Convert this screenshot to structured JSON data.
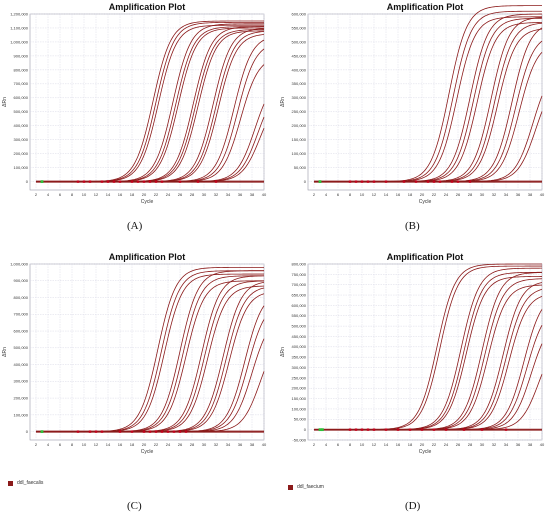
{
  "chart_data": [
    {
      "id": "A",
      "type": "line",
      "title": "Amplification Plot",
      "xlabel": "Cycle",
      "ylabel": "ΔRn",
      "xlim": [
        1,
        40
      ],
      "ylim": [
        -60000,
        1200000
      ],
      "x_ticks": [
        2,
        4,
        6,
        8,
        10,
        12,
        14,
        16,
        18,
        20,
        22,
        24,
        26,
        28,
        30,
        32,
        34,
        36,
        38,
        40
      ],
      "y_ticks": [
        0,
        100000,
        200000,
        300000,
        400000,
        500000,
        600000,
        700000,
        800000,
        900000,
        1000000,
        1100000,
        1200000
      ],
      "y_tick_labels": [
        "0",
        "100,000",
        "200,000",
        "300,000",
        "400,000",
        "500,000",
        "600,000",
        "700,000",
        "800,000",
        "900,000",
        "1,000,000",
        "1,100,000",
        "1,200,000"
      ],
      "curves": [
        {
          "ct": 21.5,
          "max": 1150000
        },
        {
          "ct": 22.0,
          "max": 1140000
        },
        {
          "ct": 22.4,
          "max": 1120000
        },
        {
          "ct": 24.8,
          "max": 1130000
        },
        {
          "ct": 25.3,
          "max": 1110000
        },
        {
          "ct": 25.7,
          "max": 1100000
        },
        {
          "ct": 28.2,
          "max": 1110000
        },
        {
          "ct": 28.6,
          "max": 1090000
        },
        {
          "ct": 29.0,
          "max": 1080000
        },
        {
          "ct": 31.5,
          "max": 1100000
        },
        {
          "ct": 32.0,
          "max": 1080000
        },
        {
          "ct": 32.4,
          "max": 1060000
        },
        {
          "ct": 35.0,
          "max": 1050000
        },
        {
          "ct": 35.6,
          "max": 1000000
        },
        {
          "ct": 36.1,
          "max": 900000
        },
        {
          "ct": 38.5,
          "max": 760000
        },
        {
          "ct": 39.0,
          "max": 700000
        },
        {
          "ct": 39.4,
          "max": 640000
        }
      ],
      "ct_markers": [
        9,
        10,
        11,
        13,
        14,
        15,
        16,
        18,
        19,
        20,
        21,
        22,
        23,
        26,
        29,
        32
      ],
      "ntc_markers": [
        3
      ]
    },
    {
      "id": "B",
      "type": "line",
      "title": "Amplification Plot",
      "xlabel": "Cycle",
      "ylabel": "ΔRn",
      "xlim": [
        1,
        40
      ],
      "ylim": [
        -30000,
        600000
      ],
      "x_ticks": [
        2,
        4,
        6,
        8,
        10,
        12,
        14,
        16,
        18,
        20,
        22,
        24,
        26,
        28,
        30,
        32,
        34,
        36,
        38,
        40
      ],
      "y_ticks": [
        0,
        50000,
        100000,
        150000,
        200000,
        250000,
        300000,
        350000,
        400000,
        450000,
        500000,
        550000,
        600000
      ],
      "y_tick_labels": [
        "0",
        "50,000",
        "100,000",
        "150,000",
        "200,000",
        "250,000",
        "300,000",
        "350,000",
        "400,000",
        "450,000",
        "500,000",
        "550,000",
        "600,000"
      ],
      "curves": [
        {
          "ct": 24.5,
          "max": 630000
        },
        {
          "ct": 25.2,
          "max": 610000
        },
        {
          "ct": 25.8,
          "max": 590000
        },
        {
          "ct": 28.0,
          "max": 600000
        },
        {
          "ct": 28.6,
          "max": 585000
        },
        {
          "ct": 29.2,
          "max": 570000
        },
        {
          "ct": 31.5,
          "max": 590000
        },
        {
          "ct": 32.1,
          "max": 570000
        },
        {
          "ct": 32.6,
          "max": 550000
        },
        {
          "ct": 35.0,
          "max": 570000
        },
        {
          "ct": 35.6,
          "max": 530000
        },
        {
          "ct": 36.2,
          "max": 500000
        },
        {
          "ct": 38.5,
          "max": 420000
        },
        {
          "ct": 39.0,
          "max": 380000
        }
      ],
      "ct_markers": [
        8,
        9,
        10,
        11,
        12,
        14,
        17,
        19,
        21,
        22,
        23,
        25,
        26,
        28
      ],
      "ntc_markers": [
        3
      ]
    },
    {
      "id": "C",
      "type": "line",
      "title": "Amplification Plot",
      "xlabel": "Cycle",
      "ylabel": "ΔRn",
      "xlim": [
        1,
        40
      ],
      "ylim": [
        -50000,
        1000000
      ],
      "x_ticks": [
        2,
        4,
        6,
        8,
        10,
        12,
        14,
        16,
        18,
        20,
        22,
        24,
        26,
        28,
        30,
        32,
        34,
        36,
        38,
        40
      ],
      "y_ticks": [
        0,
        100000,
        200000,
        300000,
        400000,
        500000,
        600000,
        700000,
        800000,
        900000,
        1000000
      ],
      "y_tick_labels": [
        "0",
        "100,000",
        "200,000",
        "300,000",
        "400,000",
        "500,000",
        "600,000",
        "700,000",
        "800,000",
        "900,000",
        "1,000,000"
      ],
      "curves": [
        {
          "ct": 22.3,
          "max": 980000
        },
        {
          "ct": 22.9,
          "max": 960000
        },
        {
          "ct": 23.4,
          "max": 940000
        },
        {
          "ct": 26.0,
          "max": 960000
        },
        {
          "ct": 26.5,
          "max": 930000
        },
        {
          "ct": 27.0,
          "max": 900000
        },
        {
          "ct": 29.6,
          "max": 930000
        },
        {
          "ct": 30.1,
          "max": 900000
        },
        {
          "ct": 30.6,
          "max": 870000
        },
        {
          "ct": 33.2,
          "max": 900000
        },
        {
          "ct": 33.7,
          "max": 870000
        },
        {
          "ct": 34.2,
          "max": 840000
        },
        {
          "ct": 36.8,
          "max": 840000
        },
        {
          "ct": 37.3,
          "max": 780000
        },
        {
          "ct": 38.0,
          "max": 700000
        },
        {
          "ct": 39.4,
          "max": 600000
        }
      ],
      "ct_markers": [
        9,
        11,
        12,
        13,
        16,
        18,
        20,
        21,
        22,
        23,
        24,
        25,
        26,
        27
      ],
      "ntc_markers": [
        3
      ]
    },
    {
      "id": "D",
      "type": "line",
      "title": "Amplification Plot",
      "xlabel": "Cycle",
      "ylabel": "ΔRn",
      "xlim": [
        1,
        40
      ],
      "ylim": [
        -50000,
        800000
      ],
      "x_ticks": [
        2,
        4,
        6,
        8,
        10,
        12,
        14,
        16,
        18,
        20,
        22,
        24,
        26,
        28,
        30,
        32,
        34,
        36,
        38,
        40
      ],
      "y_ticks": [
        -50000,
        0,
        50000,
        100000,
        150000,
        200000,
        250000,
        300000,
        350000,
        400000,
        450000,
        500000,
        550000,
        600000,
        650000,
        700000,
        750000,
        800000
      ],
      "y_tick_labels": [
        "-50,000",
        "0",
        "50,000",
        "100,000",
        "150,000",
        "200,000",
        "250,000",
        "300,000",
        "350,000",
        "400,000",
        "450,000",
        "500,000",
        "550,000",
        "600,000",
        "650,000",
        "700,000",
        "750,000",
        "800,000"
      ],
      "curves": [
        {
          "ct": 22.5,
          "max": 800000
        },
        {
          "ct": 23.0,
          "max": 790000
        },
        {
          "ct": 26.5,
          "max": 780000
        },
        {
          "ct": 27.0,
          "max": 760000
        },
        {
          "ct": 27.4,
          "max": 740000
        },
        {
          "ct": 30.0,
          "max": 760000
        },
        {
          "ct": 30.5,
          "max": 730000
        },
        {
          "ct": 31.0,
          "max": 700000
        },
        {
          "ct": 33.5,
          "max": 720000
        },
        {
          "ct": 34.0,
          "max": 690000
        },
        {
          "ct": 34.5,
          "max": 660000
        },
        {
          "ct": 37.0,
          "max": 660000
        },
        {
          "ct": 37.5,
          "max": 600000
        },
        {
          "ct": 38.2,
          "max": 540000
        },
        {
          "ct": 39.5,
          "max": 460000
        }
      ],
      "ct_markers": [
        8,
        9,
        10,
        11,
        12,
        14,
        16,
        18,
        20,
        22,
        24,
        27,
        30,
        34
      ],
      "ntc_markers": [
        3,
        3.4
      ]
    }
  ],
  "captions": [
    "(A)",
    "(B)",
    "(C)",
    "(D)"
  ],
  "legends": [
    {
      "label": "ddl_faecalis"
    },
    {
      "label": "ddl_faecium"
    }
  ],
  "colors": {
    "curve": "#8b1a1a",
    "marker": "#c0001a",
    "ntc_marker": "#2fbf3a",
    "grid": "#d9d9e6",
    "baseline": "#8b1a1a"
  }
}
